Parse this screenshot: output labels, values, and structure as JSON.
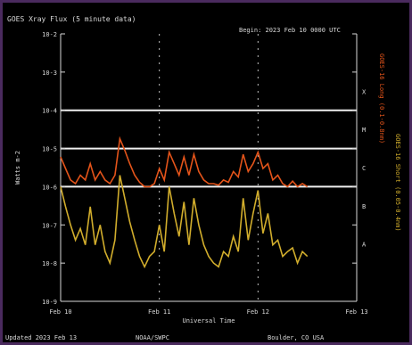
{
  "header": {
    "left_title": "GOES Xray Flux (5 minute data)",
    "right_title": "Begin: 2023 Feb 10 0000 UTC"
  },
  "footer": {
    "left": "Updated 2023 Feb 13",
    "center": "NOAA/SWPC",
    "right": "Boulder, CO USA"
  },
  "right_axis": {
    "classes": [
      "X",
      "M",
      "C",
      "B",
      "A"
    ],
    "legend": [
      {
        "label": "GOES-16 Long (0.1-0.8nm)",
        "color": "#e4541a"
      },
      {
        "label": "GOES-16 Short (0.05-0.4nm)",
        "color": "#d1ad2c"
      }
    ]
  },
  "chart_data": {
    "type": "line",
    "title": "GOES Xray Flux (5 minute data)",
    "xlabel": "Universal Time",
    "ylabel": "Watts m-2",
    "y_scale": "log",
    "ylim": [
      1e-09,
      0.01
    ],
    "y_ticks": [
      "10-2",
      "10-3",
      "10-4",
      "10-5",
      "10-6",
      "10-7",
      "10-8",
      "10-9"
    ],
    "x_ticks": [
      "Feb 10",
      "Feb 11",
      "Feb 12",
      "Feb 13"
    ],
    "xlim": [
      0,
      3
    ],
    "flare_thresholds": [
      0.0001,
      1e-05,
      1e-06
    ],
    "grid": false,
    "legend_placement": "right",
    "series": [
      {
        "color": "#e4541a",
        "x": [
          0.0,
          0.05,
          0.1,
          0.15,
          0.2,
          0.25,
          0.3,
          0.35,
          0.4,
          0.45,
          0.5,
          0.55,
          0.6,
          0.65,
          0.7,
          0.75,
          0.8,
          0.85,
          0.9,
          0.95,
          1.0,
          1.05,
          1.1,
          1.15,
          1.2,
          1.25,
          1.3,
          1.35,
          1.4,
          1.45,
          1.5,
          1.55,
          1.6,
          1.65,
          1.7,
          1.75,
          1.8,
          1.85,
          1.9,
          1.95,
          2.0,
          2.05,
          2.1,
          2.15,
          2.2,
          2.25,
          2.3,
          2.35,
          2.4,
          2.45,
          2.5
        ],
        "values": [
          6e-06,
          3e-06,
          1.5e-06,
          1.2e-06,
          2e-06,
          1.5e-06,
          4e-06,
          1.5e-06,
          2.5e-06,
          1.5e-06,
          1.2e-06,
          2e-06,
          1.8e-05,
          9e-06,
          4e-06,
          2e-06,
          1.3e-06,
          1e-06,
          1e-06,
          1.2e-06,
          3e-06,
          1.5e-06,
          8e-06,
          4e-06,
          2e-06,
          6e-06,
          2e-06,
          7e-06,
          2.5e-06,
          1.5e-06,
          1.2e-06,
          1.2e-06,
          1.1e-06,
          1.5e-06,
          1.3e-06,
          2.5e-06,
          1.8e-06,
          7e-06,
          2.5e-06,
          4e-06,
          8e-06,
          3e-06,
          4e-06,
          1.5e-06,
          2e-06,
          1.2e-06,
          1e-06,
          1.4e-06,
          1e-06,
          1.2e-06,
          1e-06
        ]
      },
      {
        "color": "#d1ad2c",
        "x": [
          0.0,
          0.05,
          0.1,
          0.15,
          0.2,
          0.25,
          0.3,
          0.35,
          0.4,
          0.45,
          0.5,
          0.55,
          0.6,
          0.65,
          0.7,
          0.75,
          0.8,
          0.85,
          0.9,
          0.95,
          1.0,
          1.05,
          1.1,
          1.15,
          1.2,
          1.25,
          1.3,
          1.35,
          1.4,
          1.45,
          1.5,
          1.55,
          1.6,
          1.65,
          1.7,
          1.75,
          1.8,
          1.85,
          1.9,
          1.95,
          2.0,
          2.05,
          2.1,
          2.15,
          2.2,
          2.25,
          2.3,
          2.35,
          2.4,
          2.45,
          2.5
        ],
        "values": [
          1e-06,
          3e-07,
          1e-07,
          4e-08,
          8e-08,
          3e-08,
          3e-07,
          3e-08,
          1e-07,
          2e-08,
          1e-08,
          4e-08,
          2e-06,
          5e-07,
          1.2e-07,
          4e-08,
          1.5e-08,
          8e-09,
          1.5e-08,
          2e-08,
          1e-07,
          2e-08,
          1e-06,
          2e-07,
          5e-08,
          4e-07,
          3e-08,
          5e-07,
          1e-07,
          3e-08,
          1.5e-08,
          1e-08,
          8e-09,
          2e-08,
          1.5e-08,
          5e-08,
          2e-08,
          5e-07,
          4e-08,
          2e-07,
          8e-07,
          6e-08,
          2e-07,
          3e-08,
          4e-08,
          1.5e-08,
          2e-08,
          2.5e-08,
          1e-08,
          2e-08,
          1.5e-08
        ]
      }
    ]
  }
}
